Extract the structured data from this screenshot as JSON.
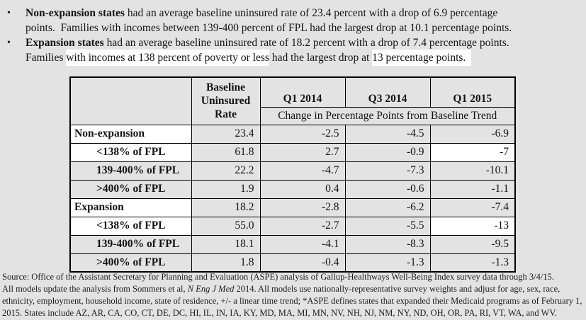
{
  "bullet_char": "•",
  "bullets": [
    {
      "lines": [
        [
          {
            "text": "Non-expansion states",
            "bold": true
          },
          {
            "text": " had an average baseline uninsured rate of 23.4 percent with a drop of 6.9 percentage"
          }
        ],
        [
          {
            "text": "points.  Families with incomes between 139-400 percent of FPL had the largest drop at 10.1 percentage points."
          }
        ]
      ]
    },
    {
      "lines": [
        [
          {
            "text": "Expansion states",
            "bold": true
          },
          {
            "text": " had an average baseline uninsured rate of 18.2 percent with a drop of 7.4 percentage points."
          }
        ],
        [
          {
            "text": "Families "
          },
          {
            "text": "with incomes at 138 percent of poverty or less",
            "highlight": true
          },
          {
            "text": " had the largest drop at "
          },
          {
            "text": "13 percentage points.  ",
            "highlight": true
          }
        ]
      ]
    }
  ],
  "table": {
    "col_headers": [
      "Baseline Uninsured Rate",
      "Q1 2014",
      "Q3 2014",
      "Q1 2015"
    ],
    "subheader": "Change in Percentage Points from Baseline Trend",
    "rows": [
      {
        "label": "Non-expansion",
        "indent": false,
        "label_white": true,
        "values": [
          "23.4",
          "-2.5",
          "-4.5",
          "-6.9"
        ],
        "white_cells": []
      },
      {
        "label": "<138% of FPL",
        "indent": true,
        "label_white": true,
        "values": [
          "61.8",
          "2.7",
          "-0.9",
          "-7"
        ],
        "white_cells": [
          3
        ]
      },
      {
        "label": "139-400% of FPL",
        "indent": true,
        "label_white": false,
        "values": [
          "22.2",
          "-4.7",
          "-7.3",
          "-10.1"
        ],
        "white_cells": []
      },
      {
        "label": ">400% of FPL",
        "indent": true,
        "label_white": false,
        "values": [
          "1.9",
          "0.4",
          "-0.6",
          "-1.1"
        ],
        "white_cells": []
      },
      {
        "label": "Expansion",
        "indent": false,
        "label_white": true,
        "values": [
          "18.2",
          "-2.8",
          "-6.2",
          "-7.4"
        ],
        "white_cells": []
      },
      {
        "label": "<138% of FPL",
        "indent": true,
        "label_white": true,
        "values": [
          "55.0",
          "-2.7",
          "-5.5",
          "-13"
        ],
        "white_cells": [
          3
        ]
      },
      {
        "label": "139-400% of FPL",
        "indent": true,
        "label_white": false,
        "values": [
          "18.1",
          "-4.1",
          "-8.3",
          "-9.5"
        ],
        "white_cells": []
      },
      {
        "label": ">400% of FPL",
        "indent": true,
        "label_white": false,
        "values": [
          "1.8",
          "-0.4",
          "-1.3",
          "-1.3"
        ],
        "white_cells": []
      }
    ]
  },
  "source": {
    "lines": [
      [
        {
          "text": "Source: Office of the Assistant Secretary for Planning and Evaluation (ASPE) analysis of Gallup-Healthways Well-Being Index survey data through 3/4/15."
        }
      ],
      [
        {
          "text": "All models update the analysis from Sommers et al, "
        },
        {
          "text": "N Eng J Med",
          "italic": true
        },
        {
          "text": " 2014. All models use nationally-representative survey weights and adjust for age, sex, race,"
        }
      ],
      [
        {
          "text": "ethnicity, employment, household income, state of residence, +/- a linear time trend; *ASPE defines states that expanded their Medicaid programs as of February 1,"
        }
      ],
      [
        {
          "text": "2015. States include AZ, AR, CA, CO, CT, DE, DC, HI, IL, IN, IA, KY, MD, MA, MI, MN, NV, NH, NJ, NM, NY, ND, OH, OR, PA, RI, VT, WA, and WV."
        }
      ]
    ]
  },
  "colors": {
    "page_background": "#e3e3e3",
    "highlight_white": "#ffffff",
    "table_border": "#000000",
    "text": "#141414"
  }
}
